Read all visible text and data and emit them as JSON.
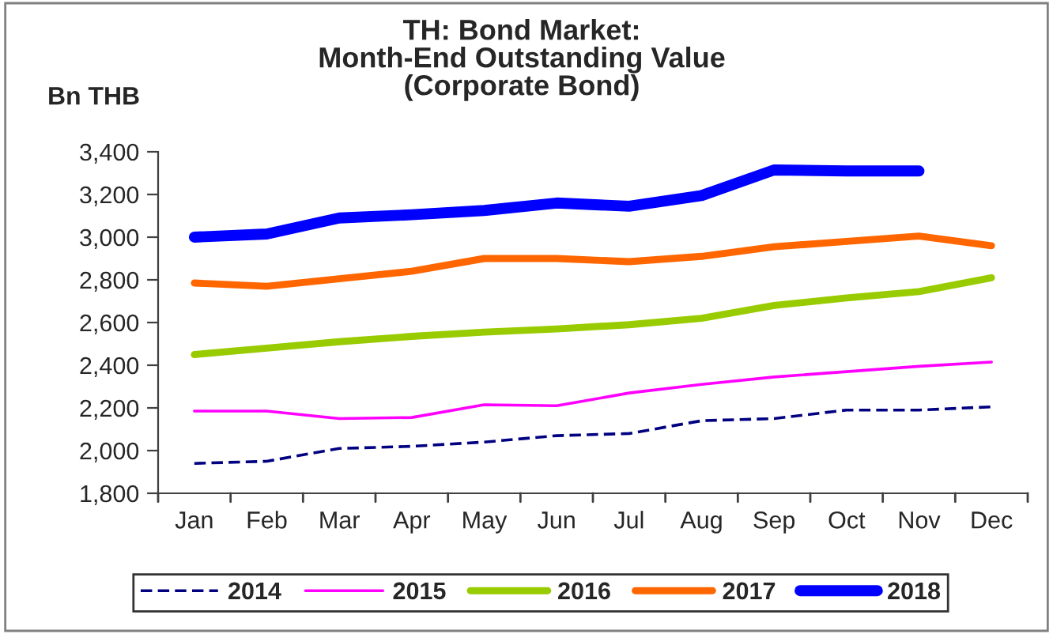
{
  "chart_data": {
    "type": "line",
    "title": "TH: Bond Market:\nMonth-End Outstanding Value\n(Corporate Bond)",
    "ylabel": "Bn THB",
    "categories": [
      "Jan",
      "Feb",
      "Mar",
      "Apr",
      "May",
      "Jun",
      "Jul",
      "Aug",
      "Sep",
      "Oct",
      "Nov",
      "Dec"
    ],
    "series": [
      {
        "name": "2014",
        "color": "#000080",
        "line_style": "dashed",
        "values": [
          1940,
          1950,
          2010,
          2020,
          2040,
          2070,
          2080,
          2140,
          2150,
          2190,
          2190,
          2205
        ]
      },
      {
        "name": "2015",
        "color": "#ff00ff",
        "values": [
          2185,
          2185,
          2150,
          2155,
          2215,
          2210,
          2270,
          2310,
          2345,
          2370,
          2395,
          2415
        ]
      },
      {
        "name": "2016",
        "color": "#99cc00",
        "values": [
          2450,
          2480,
          2510,
          2535,
          2555,
          2570,
          2590,
          2620,
          2680,
          2715,
          2745,
          2810
        ]
      },
      {
        "name": "2017",
        "color": "#ff6600",
        "values": [
          2785,
          2770,
          2805,
          2840,
          2900,
          2900,
          2885,
          2910,
          2955,
          2980,
          3005,
          2960
        ]
      },
      {
        "name": "2018",
        "color": "#0000ff",
        "values": [
          3000,
          3015,
          3090,
          3105,
          3125,
          3160,
          3145,
          3195,
          3315,
          3310,
          3310,
          null
        ]
      }
    ],
    "ylim": [
      1800,
      3400
    ],
    "yticks": [
      {
        "value": 1800,
        "label": "1,800"
      },
      {
        "value": 2000,
        "label": "2,000"
      },
      {
        "value": 2200,
        "label": "2,200"
      },
      {
        "value": 2400,
        "label": "2,400"
      },
      {
        "value": 2600,
        "label": "2,600"
      },
      {
        "value": 2800,
        "label": "2,800"
      },
      {
        "value": 3000,
        "label": "3,000"
      },
      {
        "value": 3200,
        "label": "3,200"
      },
      {
        "value": 3400,
        "label": "3,400"
      }
    ],
    "grid": false,
    "legend": "bottom",
    "line_style": "solid",
    "marker": "none"
  }
}
